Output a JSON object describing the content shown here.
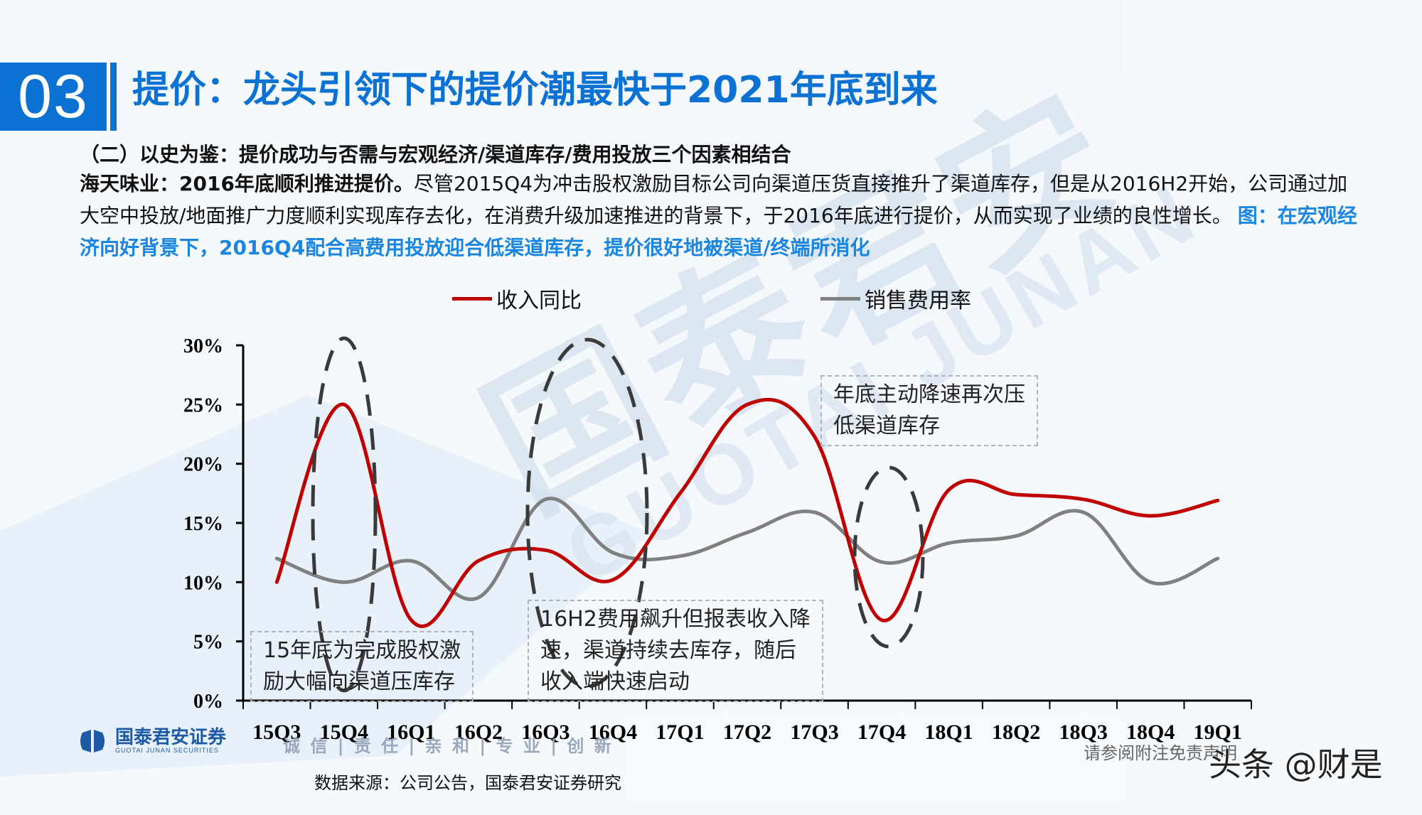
{
  "header": {
    "section_number": "03",
    "title": "提价：龙头引领下的提价潮最快于2021年底到来"
  },
  "body": {
    "subheading": "（二）以史为鉴：提价成功与否需与宏观经济/渠道库存/费用投放三个因素相结合",
    "lead": "海天味业：2016年底顺利推进提价。",
    "text": "尽管2015Q4为冲击股权激励目标公司向渠道压货直接推升了渠道库存，但是从2016H2开始，公司通过加大空中投放/地面推广力度顺利实现库存去化，在消费升级加速推进的背景下，于2016年底进行提价，从而实现了业绩的良性增长。",
    "figure_caption": "图：在宏观经济向好背景下，2016Q4配合高费用投放迎合低渠道库存，提价很好地被渠道/终端所消化"
  },
  "colors": {
    "brand_blue": "#0b72d4",
    "caption_blue": "#1a86e0",
    "revenue_red": "#c00000",
    "expense_gray": "#808080"
  },
  "chart_data": {
    "type": "line",
    "title": "",
    "xlabel": "",
    "ylabel": "",
    "ylim": [
      0,
      30
    ],
    "y_ticks": [
      "0%",
      "5%",
      "10%",
      "15%",
      "20%",
      "25%",
      "30%"
    ],
    "grid": false,
    "legend_position": "top",
    "categories": [
      "15Q3",
      "15Q4",
      "16Q1",
      "16Q2",
      "16Q3",
      "16Q4",
      "17Q1",
      "17Q2",
      "17Q3",
      "17Q4",
      "18Q1",
      "18Q2",
      "18Q3",
      "18Q4",
      "19Q1"
    ],
    "series": [
      {
        "name": "收入同比",
        "color": "#c00000",
        "values": [
          10.0,
          25.0,
          6.8,
          11.8,
          12.7,
          10.2,
          17.5,
          25.0,
          22.3,
          6.8,
          17.8,
          17.4,
          17.0,
          15.6,
          16.9
        ]
      },
      {
        "name": "销售费用率",
        "color": "#808080",
        "values": [
          12.0,
          10.0,
          11.8,
          8.7,
          17.0,
          12.5,
          12.2,
          14.2,
          15.9,
          11.7,
          13.3,
          13.9,
          15.9,
          10.0,
          12.0
        ]
      }
    ],
    "annotations": [
      {
        "text_lines": [
          "15年底为完成股权激",
          "励大幅向渠道压库存"
        ],
        "highlight_category": "15Q4"
      },
      {
        "text_lines": [
          "16H2费用飙升但报表收入降",
          "速，渠道持续去库存，随后",
          "收入端快速启动"
        ],
        "highlight_category": "16Q3-16Q4"
      },
      {
        "text_lines": [
          "年底主动降速再次压",
          "低渠道库存"
        ],
        "highlight_category": "17Q4"
      }
    ]
  },
  "footer": {
    "company_name": "国泰君安证券",
    "company_name_en": "GUOTAI JUNAN SECURITIES",
    "motto": "诚 信 | 责 任 | 亲 和 | 专 业 | 创 新",
    "source": "数据来源：公司公告，国泰君安证券研究",
    "disclaimer": "请参阅附注免责声明",
    "platform_watermark": "头条 @财是"
  },
  "watermark": {
    "cn": "国泰君安",
    "en": "GUOTAI JUNAN"
  }
}
